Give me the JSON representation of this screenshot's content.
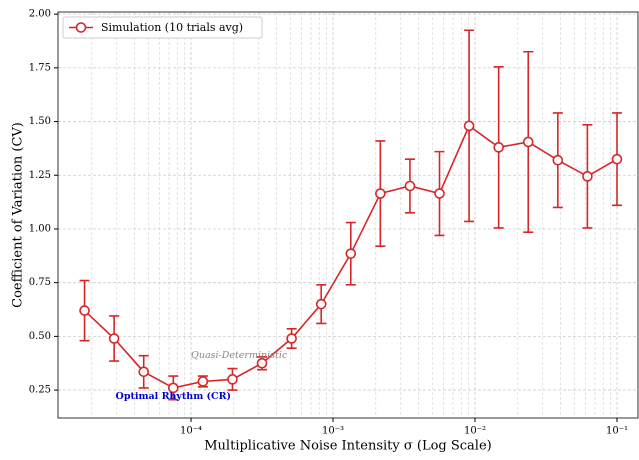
{
  "chart_data": {
    "type": "errorbar-line",
    "xlabel": "Multiplicative Noise Intensity σ (Log Scale)",
    "ylabel": "Coefficient of Variation (CV)",
    "xscale": "log",
    "grid": true,
    "legend": "upper left",
    "x": [
      1.778e-05,
      2.873e-05,
      4.642e-05,
      7.499e-05,
      0.0001212,
      0.0001957,
      0.0003162,
      0.0005109,
      0.0008254,
      0.001334,
      0.002154,
      0.003481,
      0.005623,
      0.009085,
      0.01468,
      0.02371,
      0.03831,
      0.0619,
      0.1
    ],
    "series": [
      {
        "name": "Simulation (10 trials avg)",
        "color": "#d62728",
        "values": [
          0.62,
          0.49,
          0.335,
          0.26,
          0.29,
          0.3,
          0.375,
          0.49,
          0.65,
          0.885,
          1.165,
          1.2,
          1.165,
          1.48,
          1.38,
          1.405,
          1.32,
          1.245,
          1.325
        ],
        "errors": [
          0.14,
          0.105,
          0.075,
          0.055,
          0.025,
          0.05,
          0.03,
          0.045,
          0.09,
          0.145,
          0.245,
          0.125,
          0.195,
          0.445,
          0.375,
          0.42,
          0.22,
          0.24,
          0.215
        ]
      }
    ],
    "xlim": [
      1.156e-05,
      0.1406
    ],
    "ylim": [
      0.12,
      2.01
    ],
    "xticks": [
      {
        "value": 0.0001,
        "label": "10⁻⁴"
      },
      {
        "value": 0.001,
        "label": "10⁻³"
      },
      {
        "value": 0.01,
        "label": "10⁻²"
      },
      {
        "value": 0.1,
        "label": "10⁻¹"
      }
    ],
    "yticks": [
      0.25,
      {
        "value": 0.5,
        "label": "0.50"
      },
      0.75,
      {
        "value": 1,
        "label": "1.00"
      },
      1.25,
      {
        "value": 1.5,
        "label": "1.50"
      },
      1.75,
      {
        "value": 2,
        "label": "2.00"
      }
    ],
    "annotations": [
      {
        "text": "Quasi-Deterministic",
        "x": 0.0001,
        "y": 0.41,
        "color": "#888888",
        "style": "italic"
      },
      {
        "text": "Optimal Rhythm (CR)",
        "x": 7.499e-05,
        "y": 0.22,
        "color": "#0000cc",
        "style": "bold"
      }
    ]
  }
}
